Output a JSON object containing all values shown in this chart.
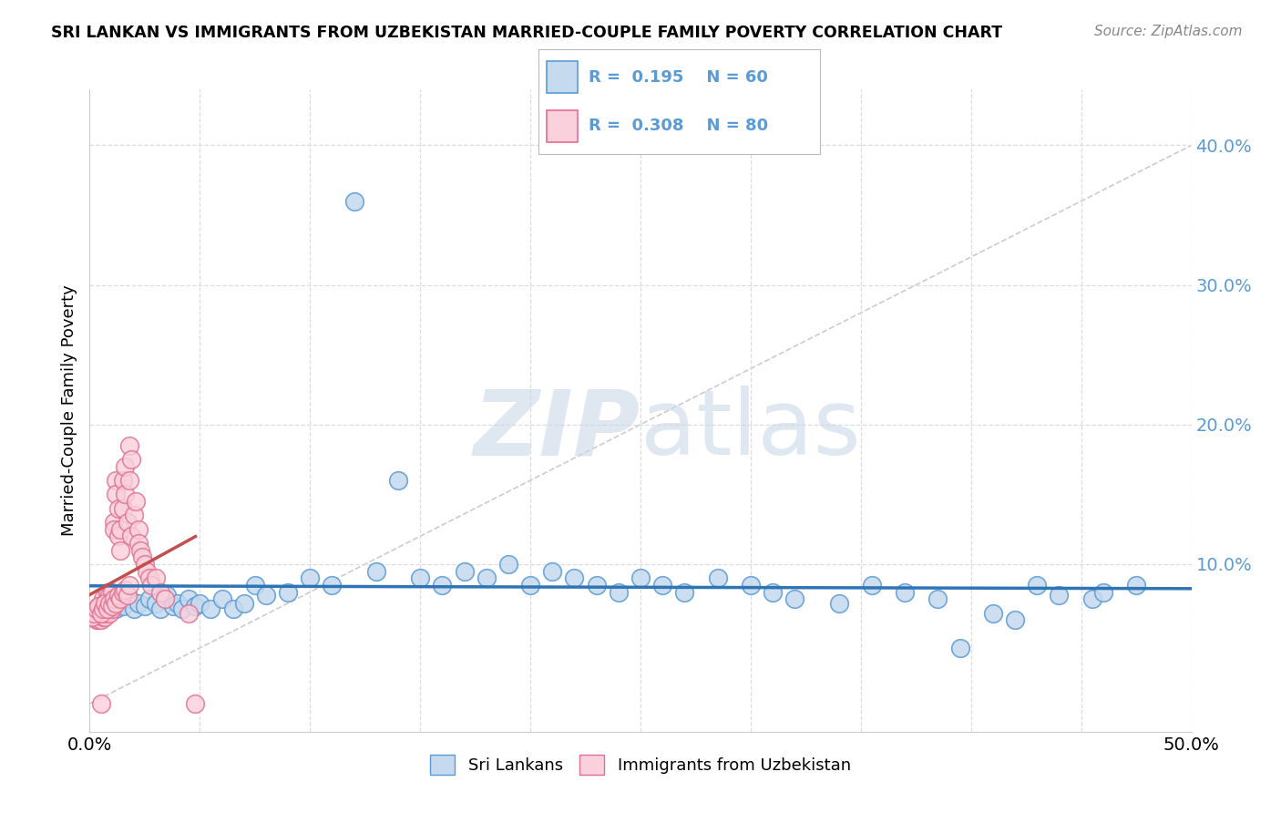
{
  "title": "SRI LANKAN VS IMMIGRANTS FROM UZBEKISTAN MARRIED-COUPLE FAMILY POVERTY CORRELATION CHART",
  "source": "Source: ZipAtlas.com",
  "ylabel": "Married-Couple Family Poverty",
  "xrange": [
    0.0,
    0.5
  ],
  "yrange": [
    -0.02,
    0.44
  ],
  "legend1_r": "0.195",
  "legend1_n": "60",
  "legend2_r": "0.308",
  "legend2_n": "80",
  "blue_fill": "#c5d9ef",
  "blue_edge": "#5b9bd5",
  "pink_fill": "#f9d0dc",
  "pink_edge": "#e07090",
  "trend_blue": "#2e75b6",
  "trend_pink": "#c0504d",
  "ref_line_color": "#cccccc",
  "grid_color": "#dddddd",
  "watermark_color": "#cad8e8",
  "legend_label_blue": "Sri Lankans",
  "legend_label_pink": "Immigrants from Uzbekistan",
  "ytick_positions": [
    0.1,
    0.2,
    0.3,
    0.4
  ],
  "ytick_labels": [
    "10.0%",
    "20.0%",
    "30.0%",
    "40.0%"
  ],
  "xtick_left_label": "0.0%",
  "xtick_right_label": "50.0%",
  "blue_x": [
    0.005,
    0.008,
    0.01,
    0.012,
    0.015,
    0.018,
    0.02,
    0.022,
    0.025,
    0.027,
    0.03,
    0.032,
    0.035,
    0.038,
    0.04,
    0.042,
    0.045,
    0.048,
    0.05,
    0.055,
    0.06,
    0.065,
    0.07,
    0.075,
    0.08,
    0.09,
    0.1,
    0.11,
    0.12,
    0.13,
    0.14,
    0.15,
    0.16,
    0.17,
    0.18,
    0.19,
    0.2,
    0.21,
    0.22,
    0.23,
    0.24,
    0.25,
    0.26,
    0.27,
    0.285,
    0.3,
    0.31,
    0.32,
    0.34,
    0.355,
    0.37,
    0.385,
    0.395,
    0.41,
    0.42,
    0.43,
    0.44,
    0.455,
    0.46,
    0.475
  ],
  "blue_y": [
    0.07,
    0.065,
    0.072,
    0.068,
    0.07,
    0.075,
    0.068,
    0.072,
    0.07,
    0.075,
    0.072,
    0.068,
    0.078,
    0.07,
    0.072,
    0.068,
    0.075,
    0.07,
    0.072,
    0.068,
    0.075,
    0.068,
    0.072,
    0.085,
    0.078,
    0.08,
    0.09,
    0.085,
    0.36,
    0.095,
    0.16,
    0.09,
    0.085,
    0.095,
    0.09,
    0.1,
    0.085,
    0.095,
    0.09,
    0.085,
    0.08,
    0.09,
    0.085,
    0.08,
    0.09,
    0.085,
    0.08,
    0.075,
    0.072,
    0.085,
    0.08,
    0.075,
    0.04,
    0.065,
    0.06,
    0.085,
    0.078,
    0.075,
    0.08,
    0.085
  ],
  "pink_x": [
    0.002,
    0.003,
    0.003,
    0.004,
    0.004,
    0.004,
    0.005,
    0.005,
    0.005,
    0.005,
    0.006,
    0.006,
    0.006,
    0.006,
    0.006,
    0.007,
    0.007,
    0.007,
    0.007,
    0.008,
    0.008,
    0.008,
    0.008,
    0.009,
    0.009,
    0.009,
    0.01,
    0.01,
    0.01,
    0.01,
    0.011,
    0.011,
    0.012,
    0.012,
    0.013,
    0.013,
    0.014,
    0.014,
    0.015,
    0.015,
    0.016,
    0.016,
    0.017,
    0.018,
    0.018,
    0.019,
    0.019,
    0.02,
    0.021,
    0.022,
    0.022,
    0.023,
    0.024,
    0.025,
    0.026,
    0.027,
    0.028,
    0.03,
    0.032,
    0.034,
    0.001,
    0.002,
    0.003,
    0.004,
    0.005,
    0.006,
    0.007,
    0.008,
    0.009,
    0.01,
    0.011,
    0.012,
    0.013,
    0.014,
    0.015,
    0.016,
    0.017,
    0.018,
    0.045,
    0.048
  ],
  "pink_y": [
    0.065,
    0.06,
    0.068,
    0.065,
    0.07,
    0.06,
    0.065,
    0.06,
    0.0,
    0.068,
    0.062,
    0.065,
    0.07,
    0.068,
    0.075,
    0.062,
    0.068,
    0.072,
    0.065,
    0.07,
    0.075,
    0.08,
    0.068,
    0.072,
    0.078,
    0.065,
    0.07,
    0.075,
    0.08,
    0.068,
    0.13,
    0.125,
    0.16,
    0.15,
    0.14,
    0.12,
    0.11,
    0.125,
    0.16,
    0.14,
    0.17,
    0.15,
    0.13,
    0.185,
    0.16,
    0.175,
    0.12,
    0.135,
    0.145,
    0.125,
    0.115,
    0.11,
    0.105,
    0.1,
    0.095,
    0.09,
    0.085,
    0.09,
    0.08,
    0.075,
    0.062,
    0.065,
    0.068,
    0.07,
    0.065,
    0.068,
    0.072,
    0.068,
    0.072,
    0.07,
    0.075,
    0.072,
    0.078,
    0.075,
    0.08,
    0.082,
    0.078,
    0.085,
    0.065,
    0.0
  ]
}
